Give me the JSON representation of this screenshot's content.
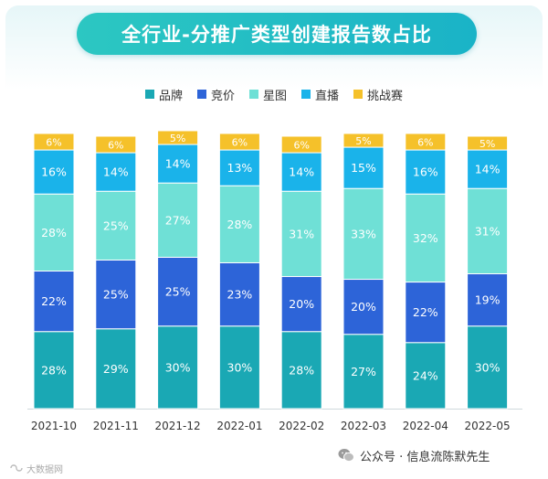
{
  "title": "全行业-分推广类型创建报告数占比",
  "colors": {
    "品牌": "#1aa8b4",
    "竞价": "#2d64d8",
    "星图": "#6fe0d6",
    "直播": "#1ab3ea",
    "挑战赛": "#f5c12a",
    "title_bg": "#24bec6"
  },
  "footer": {
    "text": "公众号 · 信息流陈默先生"
  },
  "watermark": {
    "text": "大数据网"
  },
  "chart_data": {
    "type": "bar",
    "stacked": true,
    "title": "全行业-分推广类型创建报告数占比",
    "categories": [
      "2021-10",
      "2021-11",
      "2021-12",
      "2022-01",
      "2022-02",
      "2022-03",
      "2022-04",
      "2022-05"
    ],
    "series": [
      {
        "name": "品牌",
        "values": [
          28,
          29,
          30,
          30,
          28,
          27,
          24,
          30
        ]
      },
      {
        "name": "竞价",
        "values": [
          22,
          25,
          25,
          23,
          20,
          20,
          22,
          19
        ]
      },
      {
        "name": "星图",
        "values": [
          28,
          25,
          27,
          28,
          31,
          33,
          32,
          31
        ]
      },
      {
        "name": "直播",
        "values": [
          16,
          14,
          14,
          13,
          14,
          15,
          16,
          14
        ]
      },
      {
        "name": "挑战赛",
        "values": [
          6,
          6,
          5,
          6,
          6,
          5,
          6,
          5
        ]
      }
    ],
    "ylim": [
      0,
      100
    ],
    "unit": "%",
    "legend_position": "top"
  }
}
